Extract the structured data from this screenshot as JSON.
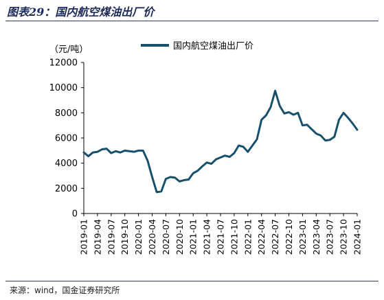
{
  "figure": {
    "title": "图表29：国内航空煤油出厂价",
    "source": "来源：wind，国金证券研究所"
  },
  "colors": {
    "line": "#17506b",
    "accent": "#1d2b5a"
  },
  "chart_data": {
    "type": "line",
    "title": "",
    "ylabel": "（元/吨）",
    "xlabel": "",
    "ylim": [
      0,
      12000
    ],
    "yticks": [
      0,
      2000,
      4000,
      6000,
      8000,
      10000,
      12000
    ],
    "ytick_labels": [
      "0",
      "2000",
      "4000",
      "6000",
      "8000",
      "10000",
      "12000"
    ],
    "xtick_labels": [
      "2019-01",
      "2019-04",
      "2019-07",
      "2019-10",
      "2020-01",
      "2020-04",
      "2020-07",
      "2020-10",
      "2021-01",
      "2021-04",
      "2021-07",
      "2021-10",
      "2022-01",
      "2022-04",
      "2022-07",
      "2022-10",
      "2023-01",
      "2023-04",
      "2023-07",
      "2023-10",
      "2024-01"
    ],
    "legend": {
      "position": "top"
    },
    "grid": false,
    "series": [
      {
        "name": "国内航空煤油出厂价",
        "x": [
          "2019-01",
          "2019-02",
          "2019-03",
          "2019-04",
          "2019-05",
          "2019-06",
          "2019-07",
          "2019-08",
          "2019-09",
          "2019-10",
          "2019-11",
          "2019-12",
          "2020-01",
          "2020-02",
          "2020-03",
          "2020-04",
          "2020-05",
          "2020-06",
          "2020-07",
          "2020-08",
          "2020-09",
          "2020-10",
          "2020-11",
          "2020-12",
          "2021-01",
          "2021-02",
          "2021-03",
          "2021-04",
          "2021-05",
          "2021-06",
          "2021-07",
          "2021-08",
          "2021-09",
          "2021-10",
          "2021-11",
          "2021-12",
          "2022-01",
          "2022-02",
          "2022-03",
          "2022-04",
          "2022-05",
          "2022-06",
          "2022-07",
          "2022-08",
          "2022-09",
          "2022-10",
          "2022-11",
          "2022-12",
          "2023-01",
          "2023-02",
          "2023-03",
          "2023-04",
          "2023-05",
          "2023-06",
          "2023-07",
          "2023-08",
          "2023-09",
          "2023-10",
          "2023-11",
          "2023-12",
          "2024-01"
        ],
        "values": [
          4850,
          4550,
          4850,
          4900,
          5100,
          5150,
          4800,
          4950,
          4850,
          5000,
          4950,
          4900,
          5000,
          5000,
          4200,
          2900,
          1700,
          1750,
          2750,
          2900,
          2850,
          2550,
          2650,
          2700,
          3200,
          3400,
          3750,
          4050,
          3950,
          4300,
          4450,
          4600,
          4500,
          4800,
          5400,
          5300,
          4900,
          5400,
          5900,
          7450,
          7800,
          8450,
          9750,
          8550,
          7950,
          8050,
          7850,
          8000,
          7000,
          7050,
          6700,
          6350,
          6200,
          5800,
          5850,
          6100,
          7450,
          8000,
          7600,
          7150,
          6650
        ]
      }
    ]
  }
}
